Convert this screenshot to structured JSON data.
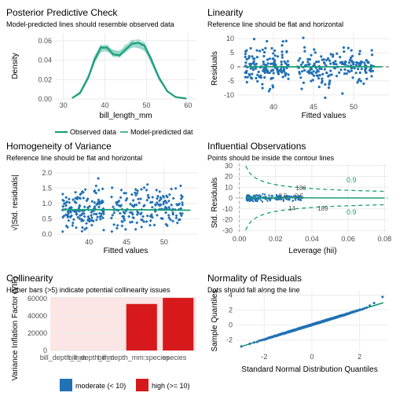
{
  "colors": {
    "teal": "#1b9e77",
    "blue": "#2171b5",
    "red": "#d7191c",
    "light_blue": "#a6cee3",
    "grid": "#ebebeb",
    "text": "#000000",
    "axis_text": "#4d4d4d",
    "collinearity_bg": "#fbe5e5"
  },
  "chart_data": [
    {
      "panel": "ppc",
      "type": "line",
      "title": "Posterior Predictive Check",
      "subtitle": "Model-predicted lines should resemble observed data",
      "xlabel": "bill_length_mm",
      "ylabel": "Density",
      "xlim": [
        28,
        62
      ],
      "ylim": [
        0,
        0.068
      ],
      "xticks": [
        30,
        40,
        50,
        60
      ],
      "yticks": [
        0.0,
        0.02,
        0.04,
        0.06
      ],
      "ytick_labels": [
        "0.00",
        "0.02",
        "0.04",
        "0.06"
      ],
      "series": [
        {
          "name": "Observed data",
          "color": "#1b9e77",
          "x": [
            32.1,
            34,
            36,
            37.5,
            39,
            40.5,
            42,
            43.5,
            45,
            46.5,
            48,
            49.5,
            51,
            53,
            55,
            57,
            59.6
          ],
          "values": [
            0.001,
            0.006,
            0.022,
            0.04,
            0.053,
            0.053,
            0.046,
            0.045,
            0.051,
            0.057,
            0.058,
            0.055,
            0.042,
            0.022,
            0.008,
            0.002,
            0.0005
          ]
        },
        {
          "name": "Model-predicted dat",
          "color": "#8fd3c9",
          "x": [
            32.1,
            34,
            36,
            37.5,
            39,
            40.5,
            42,
            43.5,
            45,
            46.5,
            48,
            49.5,
            51,
            53,
            55,
            57,
            59.6
          ],
          "values": [
            0.001,
            0.007,
            0.023,
            0.041,
            0.052,
            0.052,
            0.047,
            0.046,
            0.052,
            0.057,
            0.057,
            0.054,
            0.041,
            0.021,
            0.008,
            0.002,
            0.0005
          ]
        }
      ],
      "legend_position": "bottom"
    },
    {
      "panel": "linearity",
      "type": "scatter",
      "title": "Linearity",
      "subtitle": "Reference line should be flat and horizontal",
      "xlabel": "Fitted values",
      "ylabel": "Residuals",
      "xlim": [
        35.5,
        54.5
      ],
      "ylim": [
        -12,
        12
      ],
      "xticks": [
        40,
        45,
        50
      ],
      "yticks": [
        -10,
        -5,
        0,
        5,
        10
      ],
      "clusters": [
        {
          "x_range": [
            36.5,
            42
          ],
          "y_mean": 0,
          "y_sd": 3.2,
          "count": 150
        },
        {
          "x_range": [
            43,
            52.5
          ],
          "y_mean": 0,
          "y_sd": 3.4,
          "count": 180
        }
      ],
      "reference_line": 0
    },
    {
      "panel": "homogeneity",
      "type": "scatter",
      "title": "Homogeneity of Variance",
      "subtitle": "Reference line should be flat and horizontal",
      "xlabel": "Fitted values",
      "ylabel": "√|Std. residuals|",
      "xlim": [
        35.5,
        54.5
      ],
      "ylim": [
        -0.05,
        2.2
      ],
      "xticks": [
        40,
        45,
        50
      ],
      "yticks": [
        0.0,
        0.5,
        1.0,
        1.5,
        2.0
      ],
      "ytick_labels": [
        "0.0",
        "0.5",
        "1.0",
        "1.5",
        "2.0"
      ],
      "clusters": [
        {
          "x_range": [
            36.5,
            42
          ],
          "count": 150
        },
        {
          "x_range": [
            43,
            52.5
          ],
          "count": 180
        }
      ],
      "smooth_line": {
        "x": [
          36.5,
          45,
          53.5
        ],
        "values": [
          0.8,
          0.8,
          0.78
        ]
      }
    },
    {
      "panel": "influential",
      "type": "scatter",
      "title": "Influential Observations",
      "subtitle": "Points should be inside the contour lines",
      "xlabel": "Leverage (hii)",
      "ylabel": "Std. Residuals",
      "xlim": [
        -0.002,
        0.082
      ],
      "ylim": [
        -32,
        32
      ],
      "xticks": [
        0.0,
        0.02,
        0.04,
        0.06,
        0.08
      ],
      "xtick_labels": [
        "0.00",
        "0.02",
        "0.04",
        "0.06",
        "0.08"
      ],
      "yticks": [
        -30,
        -20,
        -10,
        0,
        10,
        20,
        30
      ],
      "contour_label": "0.9",
      "annotations": [
        {
          "text": "186",
          "x": 0.034,
          "y": 9.5
        },
        {
          "text": "14",
          "x": 0.029,
          "y": -9.5
        },
        {
          "text": "189",
          "x": 0.046,
          "y": -9.5
        },
        {
          "text": "0.5",
          "x": 0.024,
          "y": 2.2
        },
        {
          "text": "0.5",
          "x": 0.033,
          "y": 2.2
        }
      ],
      "points": {
        "x_range": [
          0.004,
          0.035
        ],
        "y_sd": 1.3,
        "count": 220
      }
    },
    {
      "panel": "collinearity",
      "type": "bar",
      "title": "Collinearity",
      "subtitle": "Higher bars (>5) indicate potential collinearity issues",
      "xlabel": "",
      "ylabel": "Variance Inflation Factor (VIF)",
      "ylim": [
        0,
        62000
      ],
      "yticks": [
        0,
        20000,
        40000,
        60000
      ],
      "categories": [
        "bill_depth_mm",
        "bill_depth_mm",
        "bill_depth_mm:species",
        "species"
      ],
      "values": [
        0,
        0,
        54000,
        61000
      ],
      "bar_colors": [
        "none",
        "none",
        "#d7191c",
        "#d7191c"
      ],
      "legend": [
        {
          "label": "moderate (< 10)",
          "color": "#2171b5"
        },
        {
          "label": "high (>= 10)",
          "color": "#d7191c"
        }
      ],
      "legend_position": "bottom"
    },
    {
      "panel": "normality",
      "type": "scatter",
      "title": "Normality of Residuals",
      "subtitle": "Dots should fall along the line",
      "xlabel": "Standard Normal Distribution Quantiles",
      "ylabel": "Sample Quantiles",
      "xlim": [
        -3.2,
        3.2
      ],
      "ylim": [
        -3.4,
        4.6
      ],
      "xticks": [
        -2,
        0,
        2
      ],
      "yticks": [
        -2,
        0,
        2,
        4
      ],
      "reference_line": {
        "x": [
          -3,
          3
        ],
        "values": [
          -2.9,
          3.0
        ]
      },
      "points": {
        "count": 330
      }
    }
  ]
}
